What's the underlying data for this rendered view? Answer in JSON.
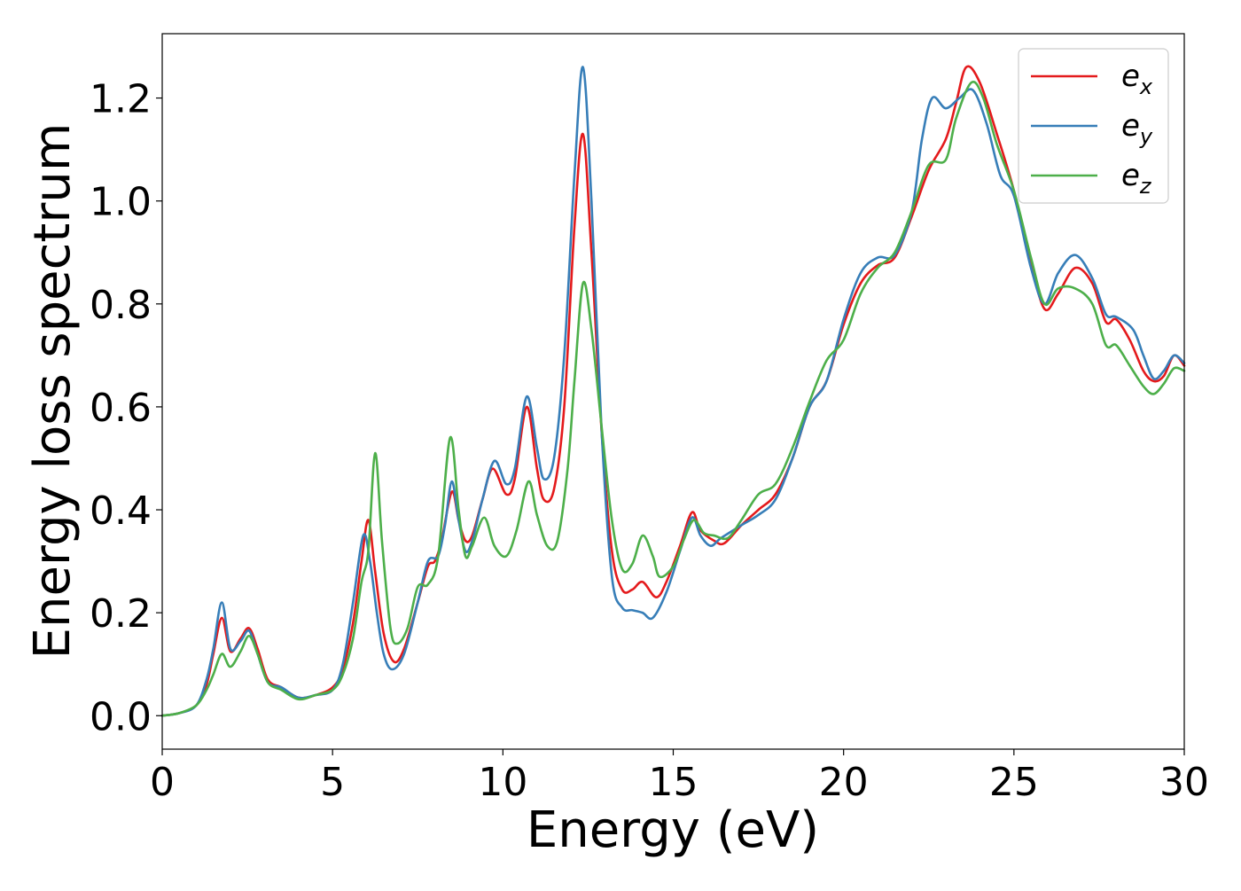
{
  "chart_data": {
    "type": "line",
    "title": "",
    "xlabel": "Energy (eV)",
    "ylabel": "Energy loss spectrum",
    "xlim": [
      0,
      30
    ],
    "ylim": [
      -0.065,
      1.325
    ],
    "xticks": [
      0,
      5,
      10,
      15,
      20,
      25,
      30
    ],
    "yticks": [
      0.0,
      0.2,
      0.4,
      0.6,
      0.8,
      1.0,
      1.2
    ],
    "xtick_labels": [
      "0",
      "5",
      "10",
      "15",
      "20",
      "25",
      "30"
    ],
    "ytick_labels": [
      "0.0",
      "0.2",
      "0.4",
      "0.6",
      "0.8",
      "1.0",
      "1.2"
    ],
    "grid": false,
    "legend": {
      "position": "top-right"
    },
    "series": [
      {
        "name": "e_x",
        "label_main": "e",
        "label_sub": "x",
        "color": "#e41a1c",
        "points": [
          [
            0,
            0
          ],
          [
            0.5,
            0.005
          ],
          [
            1.0,
            0.02
          ],
          [
            1.3,
            0.06
          ],
          [
            1.5,
            0.12
          ],
          [
            1.75,
            0.19
          ],
          [
            2.0,
            0.125
          ],
          [
            2.3,
            0.15
          ],
          [
            2.55,
            0.17
          ],
          [
            2.8,
            0.13
          ],
          [
            3.1,
            0.07
          ],
          [
            3.5,
            0.055
          ],
          [
            4.0,
            0.035
          ],
          [
            4.5,
            0.04
          ],
          [
            5.0,
            0.055
          ],
          [
            5.3,
            0.09
          ],
          [
            5.6,
            0.18
          ],
          [
            5.85,
            0.3
          ],
          [
            6.05,
            0.38
          ],
          [
            6.25,
            0.28
          ],
          [
            6.5,
            0.16
          ],
          [
            6.8,
            0.105
          ],
          [
            7.1,
            0.13
          ],
          [
            7.5,
            0.22
          ],
          [
            7.8,
            0.29
          ],
          [
            8.0,
            0.3
          ],
          [
            8.2,
            0.34
          ],
          [
            8.5,
            0.435
          ],
          [
            8.7,
            0.38
          ],
          [
            8.9,
            0.34
          ],
          [
            9.1,
            0.35
          ],
          [
            9.4,
            0.42
          ],
          [
            9.7,
            0.48
          ],
          [
            10.1,
            0.43
          ],
          [
            10.35,
            0.46
          ],
          [
            10.7,
            0.6
          ],
          [
            11.0,
            0.48
          ],
          [
            11.2,
            0.42
          ],
          [
            11.5,
            0.44
          ],
          [
            11.8,
            0.6
          ],
          [
            12.1,
            0.95
          ],
          [
            12.35,
            1.13
          ],
          [
            12.6,
            0.9
          ],
          [
            12.9,
            0.55
          ],
          [
            13.2,
            0.32
          ],
          [
            13.5,
            0.245
          ],
          [
            13.8,
            0.245
          ],
          [
            14.1,
            0.26
          ],
          [
            14.5,
            0.23
          ],
          [
            14.8,
            0.26
          ],
          [
            15.2,
            0.33
          ],
          [
            15.55,
            0.395
          ],
          [
            15.8,
            0.36
          ],
          [
            16.2,
            0.34
          ],
          [
            16.5,
            0.335
          ],
          [
            17.0,
            0.37
          ],
          [
            17.5,
            0.4
          ],
          [
            18.0,
            0.43
          ],
          [
            18.5,
            0.5
          ],
          [
            19.0,
            0.6
          ],
          [
            19.5,
            0.65
          ],
          [
            20.0,
            0.76
          ],
          [
            20.5,
            0.84
          ],
          [
            21.0,
            0.875
          ],
          [
            21.5,
            0.89
          ],
          [
            22.0,
            0.97
          ],
          [
            22.5,
            1.06
          ],
          [
            23.0,
            1.12
          ],
          [
            23.3,
            1.19
          ],
          [
            23.6,
            1.26
          ],
          [
            24.0,
            1.23
          ],
          [
            24.5,
            1.13
          ],
          [
            25.0,
            1.02
          ],
          [
            25.5,
            0.88
          ],
          [
            25.9,
            0.79
          ],
          [
            26.3,
            0.82
          ],
          [
            26.8,
            0.87
          ],
          [
            27.3,
            0.84
          ],
          [
            27.7,
            0.765
          ],
          [
            28.0,
            0.77
          ],
          [
            28.4,
            0.73
          ],
          [
            28.8,
            0.67
          ],
          [
            29.1,
            0.65
          ],
          [
            29.4,
            0.66
          ],
          [
            29.7,
            0.7
          ],
          [
            30.0,
            0.68
          ]
        ]
      },
      {
        "name": "e_y",
        "label_main": "e",
        "label_sub": "y",
        "color": "#377eb8",
        "points": [
          [
            0,
            0
          ],
          [
            0.5,
            0.005
          ],
          [
            1.0,
            0.02
          ],
          [
            1.3,
            0.07
          ],
          [
            1.5,
            0.13
          ],
          [
            1.75,
            0.22
          ],
          [
            2.0,
            0.13
          ],
          [
            2.3,
            0.145
          ],
          [
            2.55,
            0.165
          ],
          [
            2.8,
            0.12
          ],
          [
            3.1,
            0.065
          ],
          [
            3.5,
            0.055
          ],
          [
            4.0,
            0.035
          ],
          [
            4.5,
            0.04
          ],
          [
            5.0,
            0.05
          ],
          [
            5.3,
            0.1
          ],
          [
            5.6,
            0.22
          ],
          [
            5.9,
            0.35
          ],
          [
            6.1,
            0.3
          ],
          [
            6.3,
            0.2
          ],
          [
            6.5,
            0.12
          ],
          [
            6.75,
            0.09
          ],
          [
            7.1,
            0.12
          ],
          [
            7.5,
            0.22
          ],
          [
            7.8,
            0.3
          ],
          [
            8.1,
            0.31
          ],
          [
            8.3,
            0.37
          ],
          [
            8.5,
            0.455
          ],
          [
            8.7,
            0.38
          ],
          [
            8.9,
            0.32
          ],
          [
            9.1,
            0.34
          ],
          [
            9.4,
            0.42
          ],
          [
            9.75,
            0.495
          ],
          [
            10.1,
            0.45
          ],
          [
            10.35,
            0.48
          ],
          [
            10.7,
            0.62
          ],
          [
            11.0,
            0.52
          ],
          [
            11.2,
            0.46
          ],
          [
            11.5,
            0.5
          ],
          [
            11.8,
            0.7
          ],
          [
            12.1,
            1.05
          ],
          [
            12.35,
            1.26
          ],
          [
            12.6,
            1.0
          ],
          [
            12.9,
            0.55
          ],
          [
            13.2,
            0.27
          ],
          [
            13.5,
            0.21
          ],
          [
            13.8,
            0.205
          ],
          [
            14.1,
            0.2
          ],
          [
            14.4,
            0.19
          ],
          [
            14.8,
            0.24
          ],
          [
            15.2,
            0.32
          ],
          [
            15.55,
            0.385
          ],
          [
            15.8,
            0.35
          ],
          [
            16.1,
            0.33
          ],
          [
            16.4,
            0.345
          ],
          [
            17.0,
            0.37
          ],
          [
            17.5,
            0.39
          ],
          [
            18.0,
            0.42
          ],
          [
            18.5,
            0.5
          ],
          [
            19.0,
            0.6
          ],
          [
            19.5,
            0.65
          ],
          [
            20.0,
            0.77
          ],
          [
            20.5,
            0.86
          ],
          [
            21.0,
            0.89
          ],
          [
            21.5,
            0.895
          ],
          [
            22.0,
            0.98
          ],
          [
            22.3,
            1.12
          ],
          [
            22.6,
            1.2
          ],
          [
            23.0,
            1.18
          ],
          [
            23.4,
            1.2
          ],
          [
            23.8,
            1.215
          ],
          [
            24.2,
            1.15
          ],
          [
            24.6,
            1.05
          ],
          [
            25.0,
            1.01
          ],
          [
            25.5,
            0.87
          ],
          [
            25.9,
            0.8
          ],
          [
            26.3,
            0.86
          ],
          [
            26.8,
            0.895
          ],
          [
            27.3,
            0.85
          ],
          [
            27.7,
            0.78
          ],
          [
            28.0,
            0.775
          ],
          [
            28.5,
            0.75
          ],
          [
            28.8,
            0.7
          ],
          [
            29.1,
            0.655
          ],
          [
            29.4,
            0.67
          ],
          [
            29.7,
            0.7
          ],
          [
            30.0,
            0.685
          ]
        ]
      },
      {
        "name": "e_z",
        "label_main": "e",
        "label_sub": "z",
        "color": "#4daf4a",
        "points": [
          [
            0,
            0
          ],
          [
            0.5,
            0.005
          ],
          [
            1.0,
            0.02
          ],
          [
            1.3,
            0.05
          ],
          [
            1.5,
            0.08
          ],
          [
            1.75,
            0.12
          ],
          [
            2.0,
            0.095
          ],
          [
            2.3,
            0.125
          ],
          [
            2.55,
            0.155
          ],
          [
            2.8,
            0.12
          ],
          [
            3.1,
            0.065
          ],
          [
            3.5,
            0.05
          ],
          [
            4.0,
            0.032
          ],
          [
            4.5,
            0.04
          ],
          [
            5.0,
            0.05
          ],
          [
            5.3,
            0.08
          ],
          [
            5.6,
            0.15
          ],
          [
            5.85,
            0.26
          ],
          [
            6.05,
            0.32
          ],
          [
            6.25,
            0.51
          ],
          [
            6.45,
            0.34
          ],
          [
            6.7,
            0.17
          ],
          [
            6.9,
            0.14
          ],
          [
            7.2,
            0.17
          ],
          [
            7.5,
            0.25
          ],
          [
            7.8,
            0.255
          ],
          [
            8.1,
            0.31
          ],
          [
            8.45,
            0.54
          ],
          [
            8.7,
            0.4
          ],
          [
            8.9,
            0.31
          ],
          [
            9.1,
            0.33
          ],
          [
            9.45,
            0.385
          ],
          [
            9.75,
            0.33
          ],
          [
            10.1,
            0.31
          ],
          [
            10.4,
            0.36
          ],
          [
            10.75,
            0.455
          ],
          [
            11.0,
            0.39
          ],
          [
            11.3,
            0.33
          ],
          [
            11.6,
            0.34
          ],
          [
            11.9,
            0.48
          ],
          [
            12.1,
            0.65
          ],
          [
            12.35,
            0.84
          ],
          [
            12.6,
            0.75
          ],
          [
            12.9,
            0.56
          ],
          [
            13.2,
            0.38
          ],
          [
            13.5,
            0.285
          ],
          [
            13.8,
            0.295
          ],
          [
            14.1,
            0.35
          ],
          [
            14.4,
            0.31
          ],
          [
            14.6,
            0.27
          ],
          [
            15.0,
            0.29
          ],
          [
            15.3,
            0.34
          ],
          [
            15.6,
            0.38
          ],
          [
            15.9,
            0.355
          ],
          [
            16.2,
            0.35
          ],
          [
            16.6,
            0.345
          ],
          [
            17.0,
            0.38
          ],
          [
            17.5,
            0.43
          ],
          [
            18.0,
            0.45
          ],
          [
            18.5,
            0.52
          ],
          [
            19.0,
            0.61
          ],
          [
            19.5,
            0.69
          ],
          [
            20.0,
            0.73
          ],
          [
            20.5,
            0.82
          ],
          [
            21.0,
            0.87
          ],
          [
            21.5,
            0.9
          ],
          [
            22.0,
            0.98
          ],
          [
            22.5,
            1.07
          ],
          [
            23.0,
            1.08
          ],
          [
            23.3,
            1.16
          ],
          [
            23.75,
            1.23
          ],
          [
            24.1,
            1.2
          ],
          [
            24.5,
            1.11
          ],
          [
            25.0,
            1.02
          ],
          [
            25.5,
            0.89
          ],
          [
            25.9,
            0.8
          ],
          [
            26.3,
            0.83
          ],
          [
            26.8,
            0.83
          ],
          [
            27.3,
            0.8
          ],
          [
            27.7,
            0.72
          ],
          [
            28.0,
            0.72
          ],
          [
            28.4,
            0.68
          ],
          [
            28.8,
            0.64
          ],
          [
            29.1,
            0.625
          ],
          [
            29.4,
            0.645
          ],
          [
            29.7,
            0.675
          ],
          [
            30.0,
            0.67
          ]
        ]
      }
    ]
  }
}
